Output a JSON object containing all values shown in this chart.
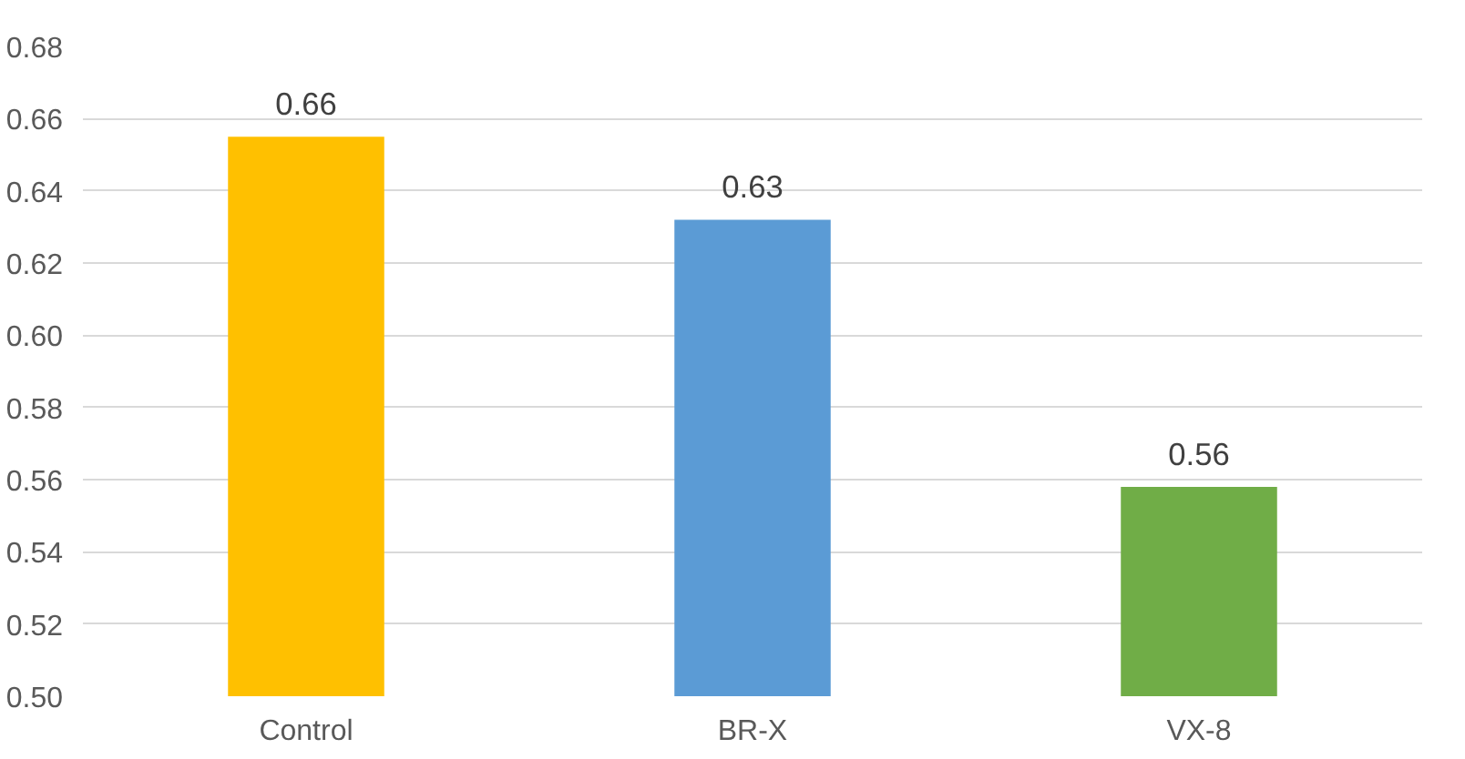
{
  "chart_data": {
    "type": "bar",
    "categories": [
      "Control",
      "BR-X",
      "VX-8"
    ],
    "values": [
      0.655,
      0.632,
      0.558
    ],
    "value_labels": [
      "0.66",
      "0.63",
      "0.56"
    ],
    "colors": [
      "#ffc000",
      "#5b9bd5",
      "#70ad47"
    ],
    "ylim": [
      0.5,
      0.68
    ],
    "yticks": [
      {
        "value": 0.5,
        "label": "0.50"
      },
      {
        "value": 0.52,
        "label": "0.52"
      },
      {
        "value": 0.54,
        "label": "0.54"
      },
      {
        "value": 0.56,
        "label": "0.56"
      },
      {
        "value": 0.58,
        "label": "0.58"
      },
      {
        "value": 0.6,
        "label": "0.60"
      },
      {
        "value": 0.62,
        "label": "0.62"
      },
      {
        "value": 0.64,
        "label": "0.64"
      },
      {
        "value": 0.66,
        "label": "0.66"
      },
      {
        "value": 0.68,
        "label": "0.68"
      }
    ],
    "grid": "y"
  }
}
